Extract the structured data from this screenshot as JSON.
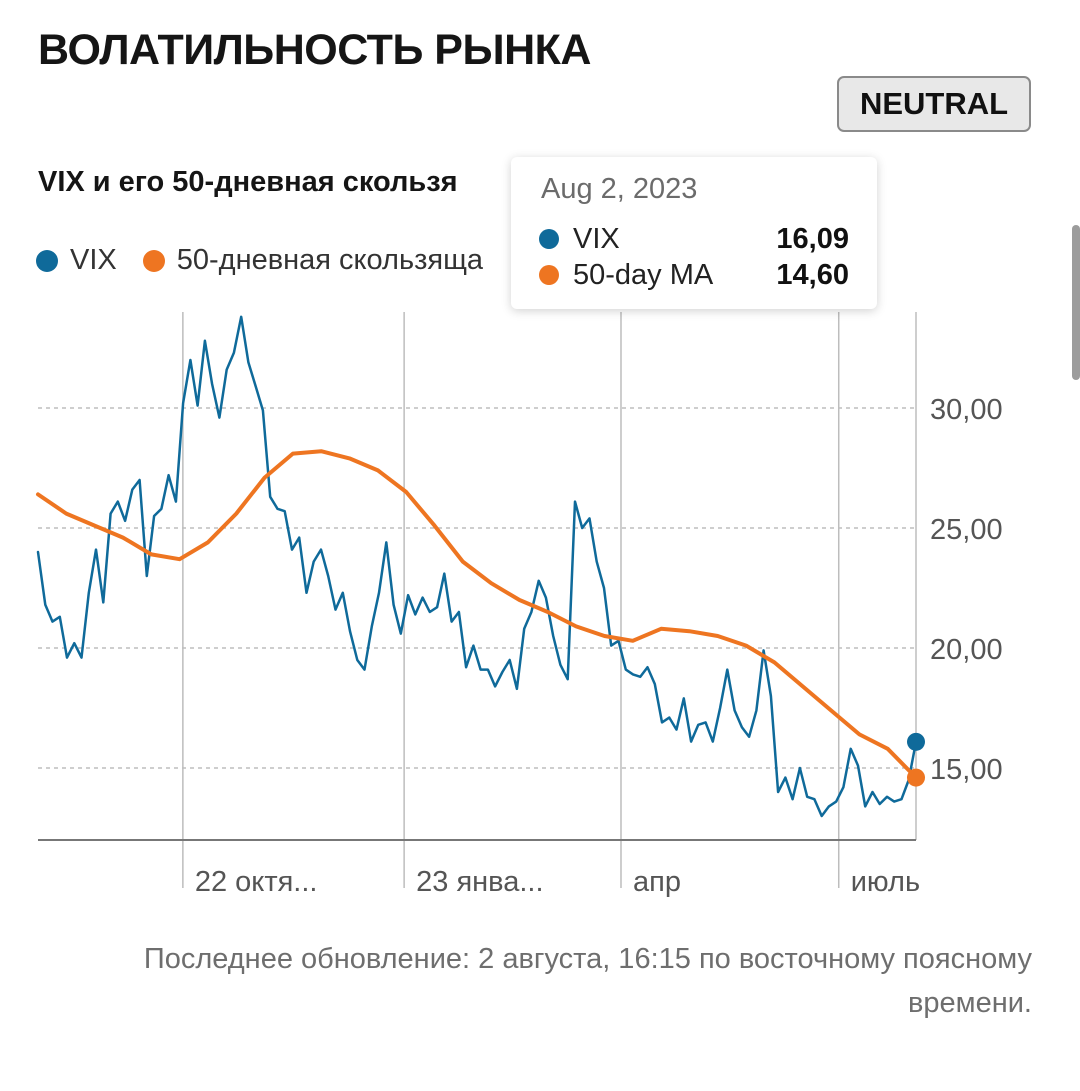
{
  "header": {
    "title": "ВОЛАТИЛЬНОСТЬ РЫНКА",
    "status_badge": "NEUTRAL"
  },
  "chart_header": {
    "title": "VIX и его 50-дневная скользя",
    "legend": [
      {
        "label": "VIX",
        "color": "#0f6a9a"
      },
      {
        "label": "50-дневная скользяща",
        "color": "#ee7521"
      }
    ]
  },
  "tooltip": {
    "date": "Aug 2, 2023",
    "rows": [
      {
        "name": "VIX",
        "value": "16,09",
        "color": "#0f6a9a"
      },
      {
        "name": "50-day MA",
        "value": "14,60",
        "color": "#ee7521"
      }
    ]
  },
  "footer": {
    "note": "Последнее обновление: 2 августа, 16:15 по восточному поясному времени."
  },
  "colors": {
    "vix": "#0f6a9a",
    "ma": "#ee7521",
    "grid": "#bdbdbd",
    "axis": "#777777",
    "tick_text": "#555555"
  },
  "chart_data": {
    "type": "line",
    "title": "VIX и его 50-дневная скользя",
    "xlabel": "",
    "ylabel": "",
    "x_ticks": [
      {
        "label": "22 октя...",
        "t": 0.165
      },
      {
        "label": "23 янва...",
        "t": 0.417
      },
      {
        "label": "апр",
        "t": 0.664
      },
      {
        "label": "июль",
        "t": 0.912
      }
    ],
    "y_ticks": [
      30,
      25,
      20,
      15
    ],
    "y_tick_labels": [
      "30,00",
      "25,00",
      "20,00",
      "15,00"
    ],
    "ylim": [
      12,
      34
    ],
    "x_grid": true,
    "y_grid": true,
    "legend_position": "top-left",
    "series": [
      {
        "name": "VIX",
        "color": "#0f6a9a",
        "values": [
          24.0,
          21.8,
          21.1,
          21.3,
          19.6,
          20.2,
          19.6,
          22.3,
          24.1,
          21.9,
          25.6,
          26.1,
          25.3,
          26.6,
          27.0,
          23.0,
          25.5,
          25.8,
          27.2,
          26.1,
          30.2,
          32.0,
          30.1,
          32.8,
          31.0,
          29.6,
          31.6,
          32.3,
          33.8,
          31.9,
          30.9,
          29.9,
          26.3,
          25.8,
          25.7,
          24.1,
          24.6,
          22.3,
          23.6,
          24.1,
          23.0,
          21.6,
          22.3,
          20.7,
          19.5,
          19.1,
          20.9,
          22.3,
          24.4,
          21.8,
          20.6,
          22.2,
          21.4,
          22.1,
          21.5,
          21.7,
          23.1,
          21.1,
          21.5,
          19.2,
          20.1,
          19.1,
          19.1,
          18.4,
          19.0,
          19.5,
          18.3,
          20.8,
          21.5,
          22.8,
          22.1,
          20.5,
          19.3,
          18.7,
          26.1,
          25.0,
          25.4,
          23.6,
          22.5,
          20.1,
          20.3,
          19.1,
          18.9,
          18.8,
          19.2,
          18.5,
          16.9,
          17.1,
          16.6,
          17.9,
          16.1,
          16.8,
          16.9,
          16.1,
          17.5,
          19.1,
          17.4,
          16.7,
          16.3,
          17.4,
          19.9,
          18.0,
          14.0,
          14.6,
          13.7,
          15.0,
          13.8,
          13.7,
          13.0,
          13.4,
          13.6,
          14.2,
          15.8,
          15.1,
          13.4,
          14.0,
          13.5,
          13.8,
          13.6,
          13.7,
          14.5,
          16.09
        ]
      },
      {
        "name": "50-day MA",
        "color": "#ee7521",
        "values": [
          26.4,
          25.6,
          25.1,
          24.6,
          23.9,
          23.7,
          24.4,
          25.6,
          27.1,
          28.1,
          28.2,
          27.9,
          27.4,
          26.5,
          25.1,
          23.6,
          22.7,
          22.0,
          21.5,
          20.9,
          20.5,
          20.3,
          20.8,
          20.7,
          20.5,
          20.1,
          19.4,
          18.4,
          17.4,
          16.4,
          15.8,
          14.6
        ]
      }
    ]
  }
}
